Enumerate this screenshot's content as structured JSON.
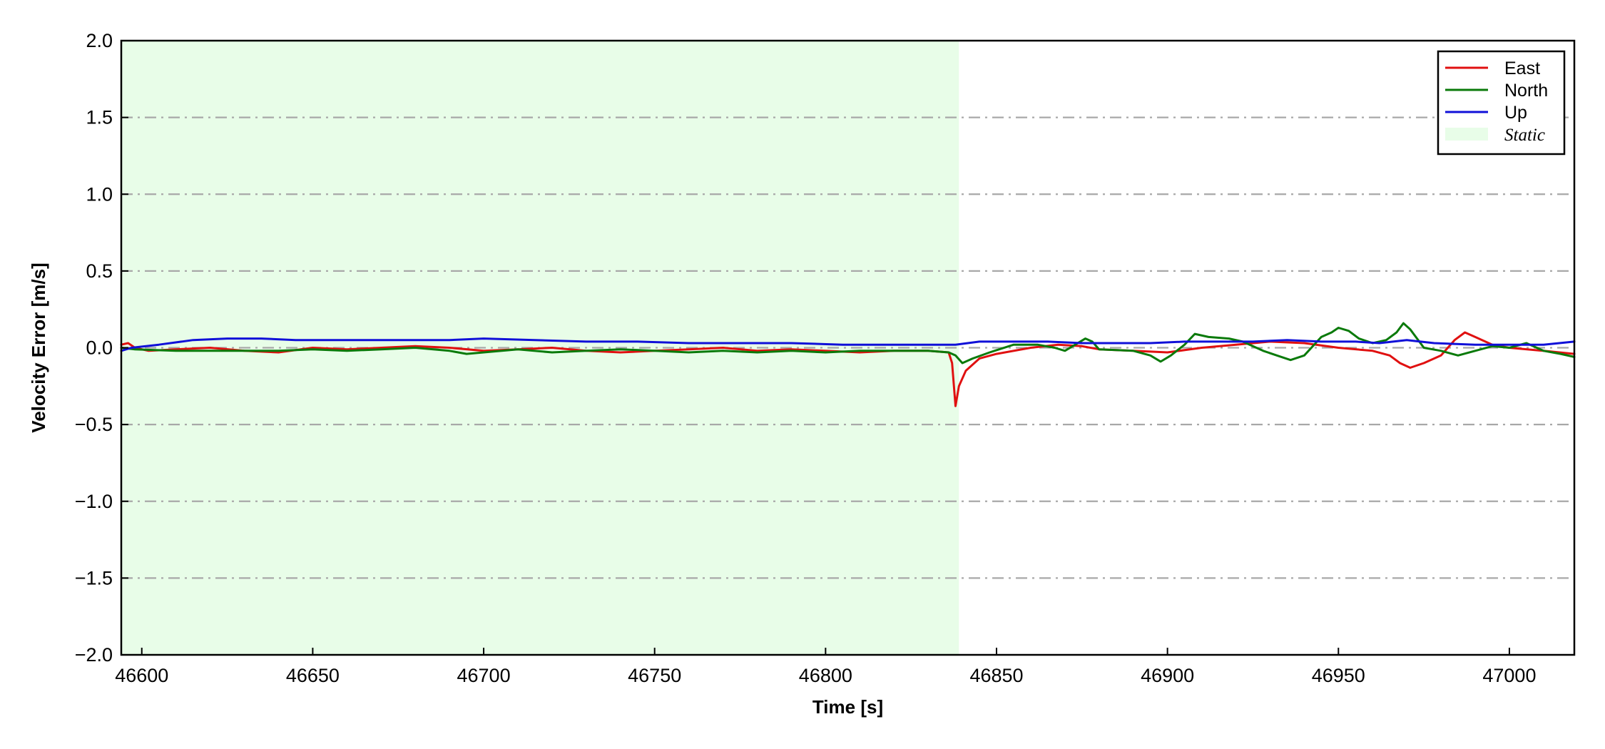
{
  "chart_data": {
    "type": "line",
    "title": "",
    "xlabel": "Time [s]",
    "ylabel": "Velocity Error [m/s]",
    "xlim": [
      46594,
      47019
    ],
    "ylim": [
      -2.0,
      2.0
    ],
    "xticks": [
      46600,
      46650,
      46700,
      46750,
      46800,
      46850,
      46900,
      46950,
      47000
    ],
    "yticks": [
      -2.0,
      -1.5,
      -1.0,
      -0.5,
      0.0,
      0.5,
      1.0,
      1.5,
      2.0
    ],
    "grid": "horizontal dash-dot",
    "legend_position": "top-right",
    "static_region": {
      "label": "Static",
      "x_start": 46594,
      "x_end": 46839,
      "color": "#e8fde8"
    },
    "series": [
      {
        "name": "East",
        "color": "#e01010",
        "points": [
          [
            46594,
            0.02
          ],
          [
            46596,
            0.03
          ],
          [
            46598,
            0.0
          ],
          [
            46602,
            -0.02
          ],
          [
            46610,
            -0.01
          ],
          [
            46620,
            0.0
          ],
          [
            46630,
            -0.02
          ],
          [
            46640,
            -0.03
          ],
          [
            46650,
            0.0
          ],
          [
            46660,
            -0.01
          ],
          [
            46670,
            0.0
          ],
          [
            46680,
            0.01
          ],
          [
            46690,
            0.0
          ],
          [
            46700,
            -0.02
          ],
          [
            46710,
            -0.01
          ],
          [
            46720,
            0.0
          ],
          [
            46730,
            -0.02
          ],
          [
            46740,
            -0.03
          ],
          [
            46750,
            -0.02
          ],
          [
            46760,
            -0.01
          ],
          [
            46770,
            0.0
          ],
          [
            46780,
            -0.02
          ],
          [
            46790,
            -0.01
          ],
          [
            46800,
            -0.02
          ],
          [
            46810,
            -0.03
          ],
          [
            46820,
            -0.02
          ],
          [
            46830,
            -0.02
          ],
          [
            46836,
            -0.03
          ],
          [
            46837,
            -0.1
          ],
          [
            46838,
            -0.38
          ],
          [
            46839,
            -0.25
          ],
          [
            46841,
            -0.15
          ],
          [
            46845,
            -0.07
          ],
          [
            46850,
            -0.04
          ],
          [
            46860,
            0.0
          ],
          [
            46868,
            0.02
          ],
          [
            46875,
            0.01
          ],
          [
            46880,
            -0.01
          ],
          [
            46890,
            -0.02
          ],
          [
            46900,
            -0.03
          ],
          [
            46910,
            0.0
          ],
          [
            46920,
            0.02
          ],
          [
            46930,
            0.04
          ],
          [
            46940,
            0.03
          ],
          [
            46950,
            0.0
          ],
          [
            46960,
            -0.02
          ],
          [
            46965,
            -0.05
          ],
          [
            46968,
            -0.1
          ],
          [
            46971,
            -0.13
          ],
          [
            46975,
            -0.1
          ],
          [
            46980,
            -0.05
          ],
          [
            46984,
            0.05
          ],
          [
            46987,
            0.1
          ],
          [
            46990,
            0.07
          ],
          [
            46995,
            0.02
          ],
          [
            47000,
            0.0
          ],
          [
            47010,
            -0.02
          ],
          [
            47019,
            -0.04
          ]
        ]
      },
      {
        "name": "North",
        "color": "#0a7a0a",
        "points": [
          [
            46594,
            0.0
          ],
          [
            46598,
            -0.01
          ],
          [
            46610,
            -0.02
          ],
          [
            46620,
            -0.02
          ],
          [
            46630,
            -0.02
          ],
          [
            46640,
            -0.02
          ],
          [
            46650,
            -0.01
          ],
          [
            46660,
            -0.02
          ],
          [
            46670,
            -0.01
          ],
          [
            46680,
            0.0
          ],
          [
            46690,
            -0.02
          ],
          [
            46695,
            -0.04
          ],
          [
            46700,
            -0.03
          ],
          [
            46710,
            -0.01
          ],
          [
            46720,
            -0.03
          ],
          [
            46730,
            -0.02
          ],
          [
            46740,
            -0.01
          ],
          [
            46750,
            -0.02
          ],
          [
            46760,
            -0.03
          ],
          [
            46770,
            -0.02
          ],
          [
            46780,
            -0.03
          ],
          [
            46790,
            -0.02
          ],
          [
            46800,
            -0.03
          ],
          [
            46810,
            -0.02
          ],
          [
            46820,
            -0.02
          ],
          [
            46830,
            -0.02
          ],
          [
            46836,
            -0.03
          ],
          [
            46838,
            -0.05
          ],
          [
            46840,
            -0.1
          ],
          [
            46843,
            -0.07
          ],
          [
            46848,
            -0.03
          ],
          [
            46855,
            0.02
          ],
          [
            46862,
            0.02
          ],
          [
            46867,
            0.0
          ],
          [
            46870,
            -0.02
          ],
          [
            46873,
            0.02
          ],
          [
            46876,
            0.06
          ],
          [
            46878,
            0.04
          ],
          [
            46880,
            -0.01
          ],
          [
            46890,
            -0.02
          ],
          [
            46895,
            -0.05
          ],
          [
            46898,
            -0.09
          ],
          [
            46901,
            -0.05
          ],
          [
            46905,
            0.02
          ],
          [
            46908,
            0.09
          ],
          [
            46912,
            0.07
          ],
          [
            46918,
            0.06
          ],
          [
            46922,
            0.04
          ],
          [
            46928,
            -0.02
          ],
          [
            46932,
            -0.05
          ],
          [
            46936,
            -0.08
          ],
          [
            46940,
            -0.05
          ],
          [
            46945,
            0.07
          ],
          [
            46948,
            0.1
          ],
          [
            46950,
            0.13
          ],
          [
            46953,
            0.11
          ],
          [
            46956,
            0.06
          ],
          [
            46960,
            0.03
          ],
          [
            46964,
            0.05
          ],
          [
            46967,
            0.1
          ],
          [
            46969,
            0.16
          ],
          [
            46971,
            0.12
          ],
          [
            46975,
            0.0
          ],
          [
            46980,
            -0.02
          ],
          [
            46985,
            -0.05
          ],
          [
            46990,
            -0.02
          ],
          [
            46995,
            0.01
          ],
          [
            47000,
            0.0
          ],
          [
            47005,
            0.03
          ],
          [
            47010,
            -0.02
          ],
          [
            47015,
            -0.04
          ],
          [
            47019,
            -0.06
          ]
        ]
      },
      {
        "name": "Up",
        "color": "#1010d8",
        "points": [
          [
            46594,
            -0.02
          ],
          [
            46597,
            0.0
          ],
          [
            46605,
            0.02
          ],
          [
            46615,
            0.05
          ],
          [
            46625,
            0.06
          ],
          [
            46635,
            0.06
          ],
          [
            46645,
            0.05
          ],
          [
            46660,
            0.05
          ],
          [
            46675,
            0.05
          ],
          [
            46690,
            0.05
          ],
          [
            46700,
            0.06
          ],
          [
            46715,
            0.05
          ],
          [
            46730,
            0.04
          ],
          [
            46745,
            0.04
          ],
          [
            46760,
            0.03
          ],
          [
            46775,
            0.03
          ],
          [
            46790,
            0.03
          ],
          [
            46805,
            0.02
          ],
          [
            46820,
            0.02
          ],
          [
            46830,
            0.02
          ],
          [
            46838,
            0.02
          ],
          [
            46845,
            0.04
          ],
          [
            46855,
            0.04
          ],
          [
            46865,
            0.04
          ],
          [
            46875,
            0.03
          ],
          [
            46885,
            0.03
          ],
          [
            46895,
            0.03
          ],
          [
            46905,
            0.04
          ],
          [
            46915,
            0.04
          ],
          [
            46925,
            0.04
          ],
          [
            46935,
            0.05
          ],
          [
            46945,
            0.04
          ],
          [
            46955,
            0.04
          ],
          [
            46962,
            0.03
          ],
          [
            46970,
            0.05
          ],
          [
            46978,
            0.03
          ],
          [
            46990,
            0.02
          ],
          [
            47000,
            0.02
          ],
          [
            47010,
            0.02
          ],
          [
            47019,
            0.04
          ]
        ]
      }
    ]
  }
}
